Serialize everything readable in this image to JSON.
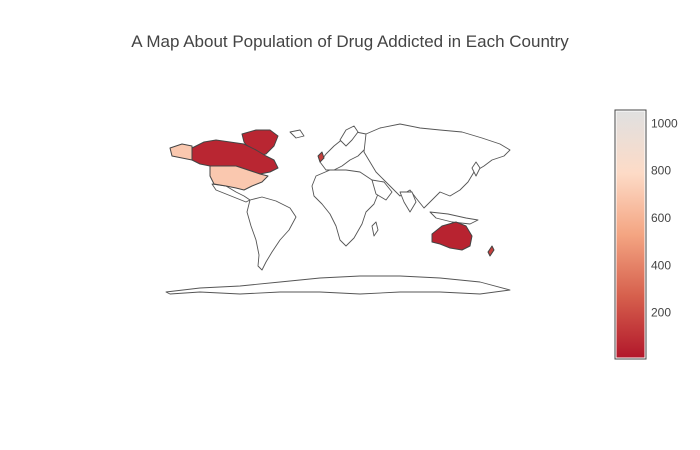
{
  "title": "A Map About Population of Drug Addicted in Each Country",
  "chart_data": {
    "type": "choropleth",
    "title": "A Map About Population of Drug Addicted in Each Country",
    "colorscale": [
      "#b2182b",
      "#d6604d",
      "#f4a582",
      "#fddbc7",
      "#e0e0e0"
    ],
    "color_range": [
      10,
      1050
    ],
    "colorbar_ticks": [
      200,
      400,
      600,
      800,
      1000
    ],
    "locations": [
      {
        "country": "United States",
        "value": 700
      },
      {
        "country": "Canada",
        "value": 60
      },
      {
        "country": "Greenland",
        "value": 60
      },
      {
        "country": "Alaska (US)",
        "value": 700
      },
      {
        "country": "Australia",
        "value": 50
      },
      {
        "country": "New Zealand",
        "value": 150
      },
      {
        "country": "United Kingdom",
        "value": 150
      }
    ]
  }
}
